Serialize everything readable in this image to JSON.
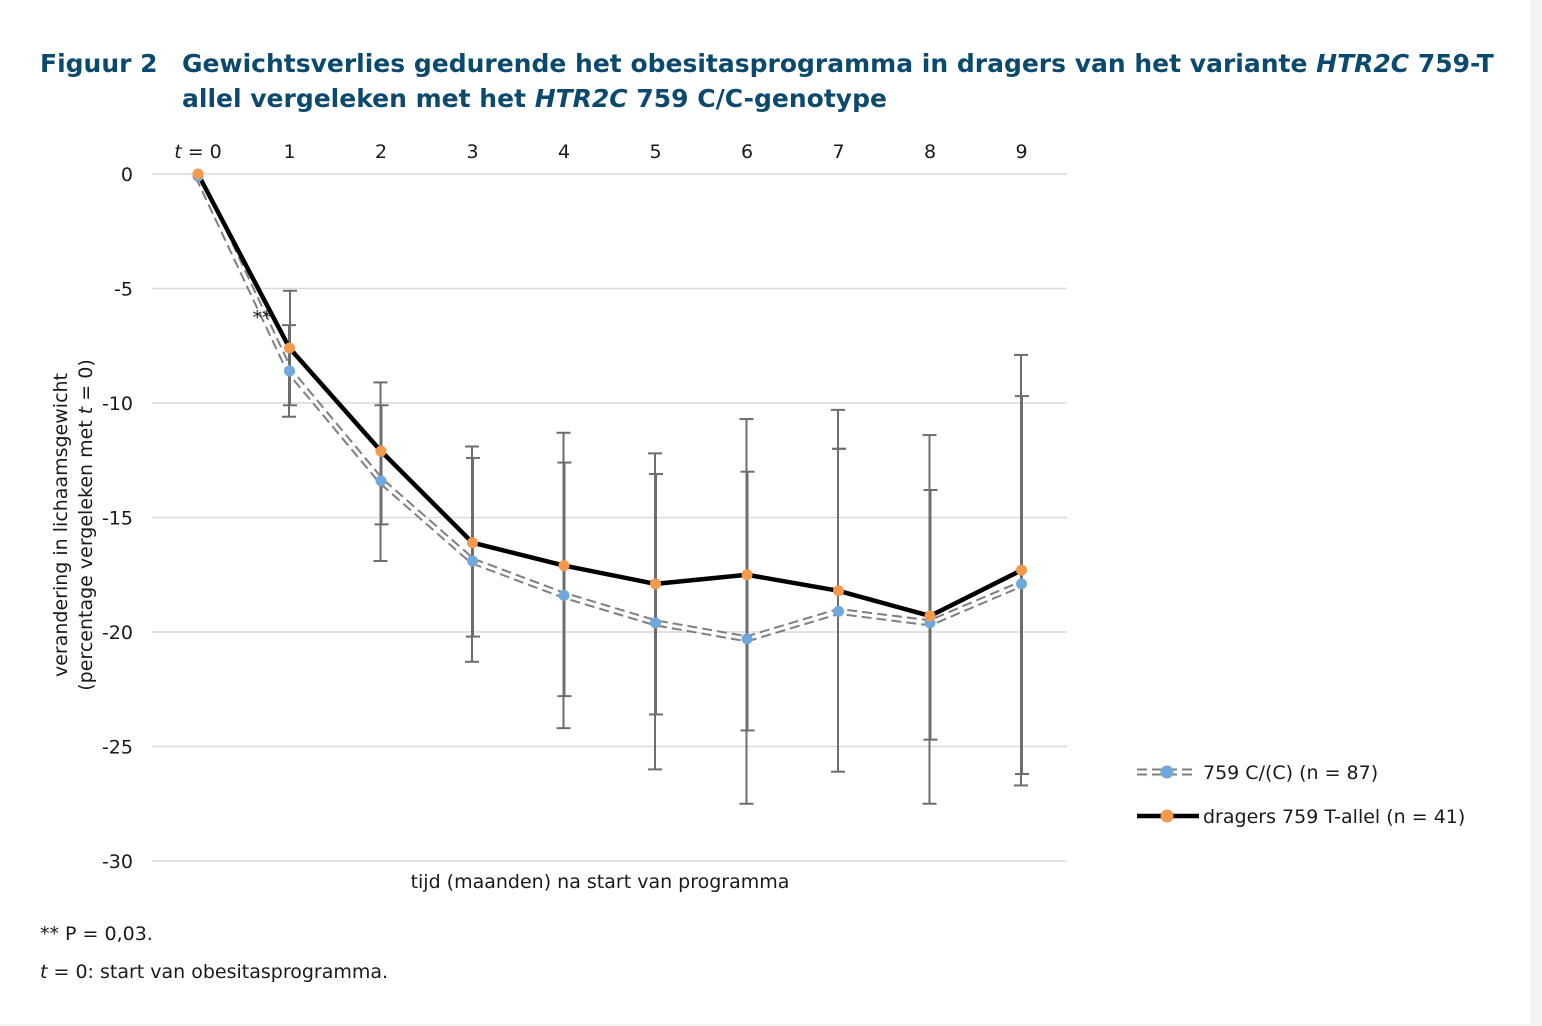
{
  "figure": {
    "number": "Figuur 2",
    "title_parts": [
      {
        "text": "Gewichtsverlies gedurende het obesitasprogramma in dragers van het variante ",
        "italic": false
      },
      {
        "text": "HTR2C",
        "italic": true
      },
      {
        "text": " 759-T allel vergeleken met het ",
        "italic": false
      },
      {
        "text": "HTR2C",
        "italic": true
      },
      {
        "text": " 759 C/C-genotype",
        "italic": false
      }
    ]
  },
  "chart_data": {
    "type": "line",
    "xlabel": "tijd (maanden) na start van programma",
    "ylabel_line1": "verandering in lichaamsgewicht",
    "ylabel_line2_parts": [
      {
        "text": "(percentage vergeleken met ",
        "italic": false
      },
      {
        "text": "t",
        "italic": true
      },
      {
        "text": " = 0)",
        "italic": false
      }
    ],
    "x_ticks": [
      {
        "label_italic": "t",
        "label": " = 0"
      },
      {
        "label": "1"
      },
      {
        "label": "2"
      },
      {
        "label": "3"
      },
      {
        "label": "4"
      },
      {
        "label": "5"
      },
      {
        "label": "6"
      },
      {
        "label": "7"
      },
      {
        "label": "8"
      },
      {
        "label": "9"
      }
    ],
    "x": [
      0,
      1,
      2,
      3,
      4,
      5,
      6,
      7,
      8,
      9
    ],
    "y_ticks": [
      0,
      -5,
      -10,
      -15,
      -20,
      -25,
      -30
    ],
    "ylim": [
      -30,
      0
    ],
    "grid": true,
    "legend_position": "right",
    "annotation": "**",
    "series": [
      {
        "name": "759 C/(C) (n = 87)",
        "style": "double-dashed",
        "line_color": "#7f7f7f",
        "marker_color": "#6fa8dc",
        "values": [
          -0.1,
          -8.6,
          -13.4,
          -16.9,
          -18.4,
          -19.6,
          -20.3,
          -19.1,
          -19.6,
          -17.9
        ],
        "err_low": [
          null,
          -10.6,
          -16.9,
          -21.3,
          -24.2,
          -26.0,
          -27.5,
          -26.1,
          -27.5,
          -26.7
        ],
        "err_high": [
          null,
          -6.6,
          -9.1,
          -11.9,
          -11.3,
          -12.2,
          -10.7,
          -10.3,
          -11.4,
          -7.9
        ]
      },
      {
        "name": "dragers 759 T-allel (n = 41)",
        "style": "solid",
        "line_color": "#000000",
        "marker_color": "#f39a4d",
        "values": [
          0.0,
          -7.6,
          -12.1,
          -16.1,
          -17.1,
          -17.9,
          -17.5,
          -18.2,
          -19.3,
          -17.3
        ],
        "err_low": [
          null,
          -10.1,
          -15.3,
          -20.2,
          -22.8,
          -23.6,
          -24.3,
          -12.0,
          -24.7,
          -26.2
        ],
        "err_high": [
          null,
          -5.1,
          -10.1,
          -12.4,
          -12.6,
          -13.1,
          -13.0,
          -12.0,
          -13.8,
          -9.7
        ]
      }
    ]
  },
  "notes": {
    "p_value": "** P = 0,03.",
    "t0_italic": "t",
    "t0_rest": " = 0: start van obesitasprogramma."
  }
}
